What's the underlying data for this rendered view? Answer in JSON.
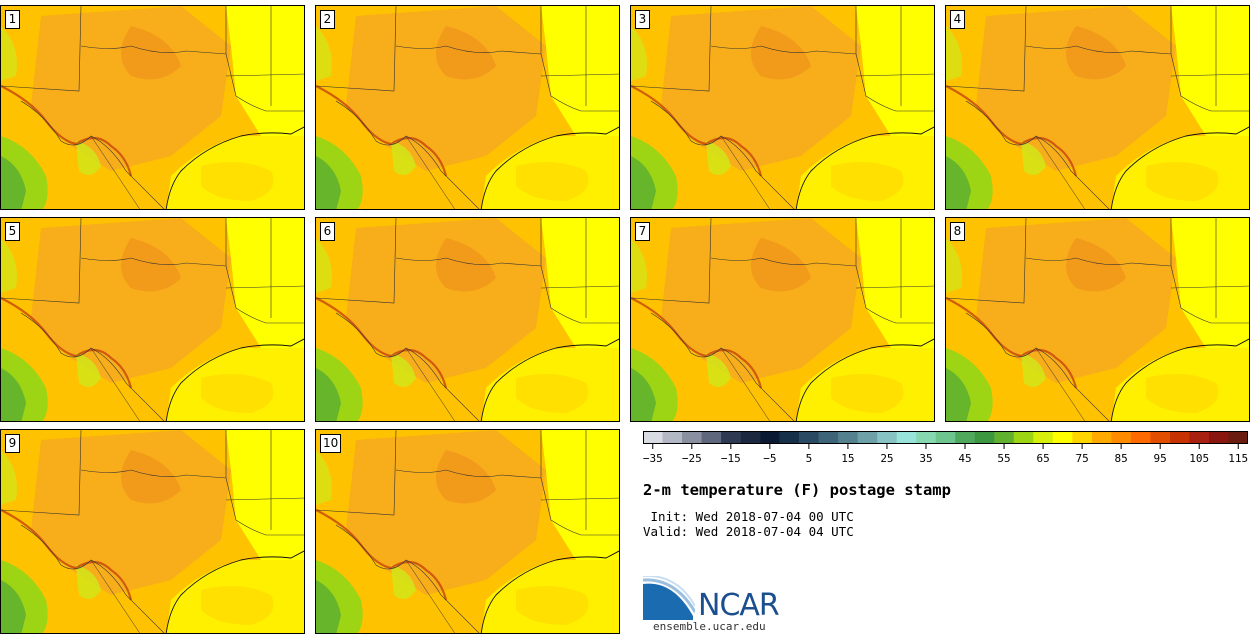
{
  "members": [
    "1",
    "2",
    "3",
    "4",
    "5",
    "6",
    "7",
    "8",
    "9",
    "10"
  ],
  "title": "2-m temperature (F) postage stamp",
  "init_text": " Init: Wed 2018-07-04 00 UTC",
  "valid_text": "Valid: Wed 2018-07-04 04 UTC",
  "logo_name": "NCAR",
  "logo_url": "ensemble.ucar.edu",
  "colorbar": {
    "ticks": [
      "−35",
      "−25",
      "−15",
      "−5",
      "5",
      "15",
      "25",
      "35",
      "45",
      "55",
      "65",
      "75",
      "85",
      "95",
      "105",
      "115"
    ],
    "colors": [
      "#d9dbe3",
      "#b4b8c4",
      "#8a90a0",
      "#5f677c",
      "#2d3a52",
      "#1b2840",
      "#0b1a33",
      "#17304a",
      "#2a4a63",
      "#3e6479",
      "#55808d",
      "#6ea0a7",
      "#87c3c3",
      "#98e4da",
      "#86d8b0",
      "#6fc58e",
      "#4fa85c",
      "#3d9640",
      "#62b12e",
      "#9dd414",
      "#d7f00b",
      "#ffff00",
      "#ffd500",
      "#ffaa00",
      "#ff8c00",
      "#ff6a00",
      "#e24e00",
      "#c63300",
      "#a82010",
      "#8a1610",
      "#6b1c10"
    ]
  },
  "colors": {
    "land_hot": "#f5a623",
    "land_warm": "#ffc200",
    "gulf": "#fff000",
    "green": "#9dd414"
  }
}
